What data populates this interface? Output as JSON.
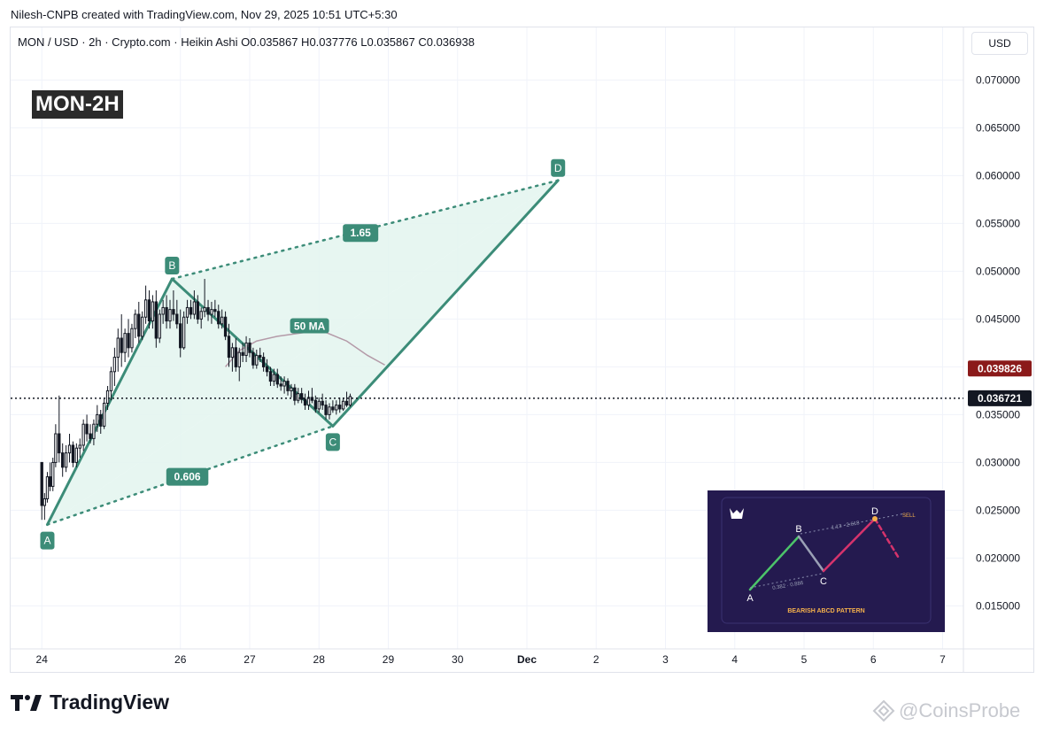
{
  "credit": "Nilesh-CNPB created with TradingView.com, Nov 29, 2025 10:51 UTC+5:30",
  "legend": "MON / USD · 2h · Crypto.com · Heikin Ashi  O0.035867  H0.037776  L0.035867  C0.036938",
  "symbol_badge": "MON-2H",
  "currency_button": "USD",
  "footer": {
    "logo_text": "TradingView",
    "watermark": "@CoinsProbe"
  },
  "colors": {
    "pattern": "#3c8c78",
    "pattern_fill": "#e3f4ef",
    "candle": "#131722",
    "ma": "#b49aa8",
    "price_tag_ma": "#8b1a1a",
    "price_tag_last": "#131722",
    "inset_bg": "#241a4f"
  },
  "icons": {
    "logo": "tradingview-logo-icon",
    "watermark": "coinsprobe-logo-icon"
  },
  "chart_data": {
    "type": "candlestick",
    "title": "",
    "xlabel": "",
    "ylabel": "",
    "ylim": [
      0.0105,
      0.0755
    ],
    "y_ticks": [
      "0.070000",
      "0.065000",
      "0.060000",
      "0.055000",
      "0.050000",
      "0.045000",
      "0.040000",
      "0.035000",
      "0.030000",
      "0.025000",
      "0.020000",
      "0.015000"
    ],
    "x_ticks": [
      {
        "label": "24",
        "t": 0
      },
      {
        "label": "26",
        "t": 2
      },
      {
        "label": "27",
        "t": 3
      },
      {
        "label": "28",
        "t": 4
      },
      {
        "label": "29",
        "t": 5
      },
      {
        "label": "30",
        "t": 6
      },
      {
        "label": "Dec",
        "t": 7,
        "bold": true
      },
      {
        "label": "2",
        "t": 8
      },
      {
        "label": "3",
        "t": 9
      },
      {
        "label": "4",
        "t": 10
      },
      {
        "label": "5",
        "t": 11
      },
      {
        "label": "6",
        "t": 12
      },
      {
        "label": "7",
        "t": 13
      }
    ],
    "xlim": [
      -0.45,
      13.3
    ],
    "last_price": {
      "value": 0.036721,
      "label": "0.036721"
    },
    "ma_price": {
      "value": 0.039826,
      "label": "0.039826"
    },
    "ma": {
      "name": "50 MA",
      "points": [
        [
          2.65,
          0.04
        ],
        [
          2.85,
          0.0417
        ],
        [
          3.1,
          0.0427
        ],
        [
          3.4,
          0.0432
        ],
        [
          3.8,
          0.0436
        ],
        [
          4.1,
          0.0436
        ],
        [
          4.4,
          0.0427
        ],
        [
          4.7,
          0.0412
        ],
        [
          4.95,
          0.0402
        ]
      ]
    },
    "pattern": {
      "points": [
        {
          "name": "A",
          "t": 0.08,
          "price": 0.0235
        },
        {
          "name": "B",
          "t": 1.88,
          "price": 0.0492
        },
        {
          "name": "C",
          "t": 4.2,
          "price": 0.0338
        },
        {
          "name": "D",
          "t": 7.45,
          "price": 0.0595
        }
      ],
      "ratios": [
        {
          "label": "0.606",
          "t": 2.1,
          "price": 0.0285
        },
        {
          "label": "1.65",
          "t": 4.6,
          "price": 0.054
        }
      ]
    },
    "candles": [
      [
        0.0,
        0.03,
        0.03,
        0.024,
        0.0255
      ],
      [
        0.04,
        0.0255,
        0.0268,
        0.024,
        0.0262
      ],
      [
        0.08,
        0.0262,
        0.029,
        0.0258,
        0.0285
      ],
      [
        0.12,
        0.0285,
        0.03,
        0.027,
        0.0275
      ],
      [
        0.16,
        0.0275,
        0.0305,
        0.027,
        0.03
      ],
      [
        0.2,
        0.03,
        0.034,
        0.0295,
        0.033
      ],
      [
        0.25,
        0.033,
        0.037,
        0.03,
        0.031
      ],
      [
        0.3,
        0.031,
        0.032,
        0.0285,
        0.0295
      ],
      [
        0.35,
        0.0295,
        0.0318,
        0.029,
        0.031
      ],
      [
        0.4,
        0.031,
        0.033,
        0.03,
        0.0318
      ],
      [
        0.45,
        0.0318,
        0.0322,
        0.0295,
        0.03
      ],
      [
        0.5,
        0.03,
        0.032,
        0.0295,
        0.0315
      ],
      [
        0.55,
        0.0315,
        0.0325,
        0.0305,
        0.0318
      ],
      [
        0.6,
        0.0318,
        0.0345,
        0.0312,
        0.034
      ],
      [
        0.65,
        0.034,
        0.035,
        0.0322,
        0.033
      ],
      [
        0.7,
        0.033,
        0.034,
        0.032,
        0.0325
      ],
      [
        0.75,
        0.0325,
        0.0345,
        0.0318,
        0.034
      ],
      [
        0.8,
        0.034,
        0.036,
        0.0332,
        0.035
      ],
      [
        0.85,
        0.035,
        0.0355,
        0.033,
        0.0338
      ],
      [
        0.9,
        0.0338,
        0.0368,
        0.0335,
        0.0362
      ],
      [
        0.95,
        0.0362,
        0.038,
        0.0355,
        0.0375
      ],
      [
        1.0,
        0.0375,
        0.04,
        0.0365,
        0.0395
      ],
      [
        1.05,
        0.0395,
        0.042,
        0.038,
        0.041
      ],
      [
        1.1,
        0.041,
        0.044,
        0.0395,
        0.043
      ],
      [
        1.15,
        0.043,
        0.0455,
        0.04,
        0.0415
      ],
      [
        1.2,
        0.0415,
        0.044,
        0.0405,
        0.0435
      ],
      [
        1.25,
        0.0435,
        0.045,
        0.041,
        0.042
      ],
      [
        1.3,
        0.042,
        0.0445,
        0.0415,
        0.044
      ],
      [
        1.35,
        0.044,
        0.046,
        0.043,
        0.0455
      ],
      [
        1.4,
        0.0455,
        0.0468,
        0.0425,
        0.0432
      ],
      [
        1.45,
        0.0432,
        0.0458,
        0.0428,
        0.0452
      ],
      [
        1.5,
        0.0452,
        0.0485,
        0.0445,
        0.047
      ],
      [
        1.55,
        0.047,
        0.048,
        0.044,
        0.0448
      ],
      [
        1.6,
        0.0448,
        0.0475,
        0.044,
        0.0468
      ],
      [
        1.65,
        0.0468,
        0.048,
        0.042,
        0.043
      ],
      [
        1.7,
        0.043,
        0.046,
        0.0425,
        0.0455
      ],
      [
        1.75,
        0.0455,
        0.047,
        0.0445,
        0.0462
      ],
      [
        1.8,
        0.0462,
        0.0475,
        0.044,
        0.0448
      ],
      [
        1.85,
        0.0448,
        0.047,
        0.044,
        0.046
      ],
      [
        1.9,
        0.046,
        0.048,
        0.0448,
        0.0455
      ],
      [
        1.95,
        0.0455,
        0.047,
        0.044,
        0.0445
      ],
      [
        2.0,
        0.0445,
        0.046,
        0.041,
        0.042
      ],
      [
        2.05,
        0.042,
        0.0458,
        0.0418,
        0.0452
      ],
      [
        2.1,
        0.0452,
        0.047,
        0.0445,
        0.0462
      ],
      [
        2.15,
        0.0462,
        0.047,
        0.045,
        0.0455
      ],
      [
        2.2,
        0.0455,
        0.048,
        0.045,
        0.0468
      ],
      [
        2.25,
        0.0468,
        0.0475,
        0.0445,
        0.045
      ],
      [
        2.3,
        0.045,
        0.0462,
        0.044,
        0.0458
      ],
      [
        2.35,
        0.0458,
        0.0492,
        0.0452,
        0.0462
      ],
      [
        2.4,
        0.0462,
        0.047,
        0.0448,
        0.0455
      ],
      [
        2.45,
        0.0455,
        0.0468,
        0.0445,
        0.046
      ],
      [
        2.5,
        0.046,
        0.047,
        0.0452,
        0.0458
      ],
      [
        2.55,
        0.0458,
        0.0465,
        0.044,
        0.0445
      ],
      [
        2.6,
        0.0445,
        0.046,
        0.044,
        0.0452
      ],
      [
        2.65,
        0.0452,
        0.0458,
        0.0428,
        0.0432
      ],
      [
        2.7,
        0.0432,
        0.0445,
        0.04,
        0.041
      ],
      [
        2.75,
        0.041,
        0.0425,
        0.0395,
        0.042
      ],
      [
        2.8,
        0.042,
        0.043,
        0.0395,
        0.04
      ],
      [
        2.85,
        0.04,
        0.042,
        0.0385,
        0.0415
      ],
      [
        2.9,
        0.0415,
        0.0425,
        0.0405,
        0.0412
      ],
      [
        2.95,
        0.0412,
        0.0432,
        0.0405,
        0.0425
      ],
      [
        3.0,
        0.0425,
        0.043,
        0.041,
        0.0415
      ],
      [
        3.05,
        0.0415,
        0.042,
        0.0398,
        0.0402
      ],
      [
        3.1,
        0.0402,
        0.0418,
        0.0398,
        0.0412
      ],
      [
        3.15,
        0.0412,
        0.042,
        0.0405,
        0.041
      ],
      [
        3.2,
        0.041,
        0.0415,
        0.0395,
        0.04
      ],
      [
        3.25,
        0.04,
        0.0408,
        0.039,
        0.0395
      ],
      [
        3.3,
        0.0395,
        0.04,
        0.038,
        0.0385
      ],
      [
        3.35,
        0.0385,
        0.0398,
        0.038,
        0.0392
      ],
      [
        3.4,
        0.0392,
        0.0398,
        0.0378,
        0.0382
      ],
      [
        3.45,
        0.0382,
        0.039,
        0.0375,
        0.038
      ],
      [
        3.5,
        0.038,
        0.039,
        0.0372,
        0.0385
      ],
      [
        3.55,
        0.0385,
        0.0388,
        0.037,
        0.0375
      ],
      [
        3.6,
        0.0375,
        0.0382,
        0.0368,
        0.0378
      ],
      [
        3.65,
        0.0378,
        0.0382,
        0.036,
        0.0365
      ],
      [
        3.7,
        0.0365,
        0.0378,
        0.0362,
        0.0372
      ],
      [
        3.75,
        0.0372,
        0.0378,
        0.0362,
        0.0366
      ],
      [
        3.8,
        0.0366,
        0.0372,
        0.0355,
        0.036
      ],
      [
        3.85,
        0.036,
        0.0375,
        0.0355,
        0.0368
      ],
      [
        3.9,
        0.0368,
        0.0378,
        0.0362,
        0.0365
      ],
      [
        3.95,
        0.0365,
        0.037,
        0.0352,
        0.0356
      ],
      [
        4.0,
        0.0356,
        0.0368,
        0.0352,
        0.0364
      ],
      [
        4.05,
        0.0364,
        0.0372,
        0.0355,
        0.036
      ],
      [
        4.1,
        0.036,
        0.0365,
        0.0345,
        0.035
      ],
      [
        4.15,
        0.035,
        0.0362,
        0.0345,
        0.0358
      ],
      [
        4.2,
        0.0358,
        0.0365,
        0.0352,
        0.0355
      ],
      [
        4.25,
        0.0355,
        0.0365,
        0.035,
        0.036
      ],
      [
        4.3,
        0.036,
        0.0368,
        0.0352,
        0.0356
      ],
      [
        4.35,
        0.0356,
        0.0368,
        0.0354,
        0.0364
      ],
      [
        4.4,
        0.0364,
        0.0374,
        0.0358,
        0.036
      ],
      [
        4.45,
        0.036,
        0.0372,
        0.0358,
        0.0369
      ]
    ],
    "inset": {
      "caption": "BEARISH ABCD PATTERN",
      "point_labels": [
        "A",
        "B",
        "C",
        "D"
      ],
      "ratio_labels": [
        "0.382 · 0.886",
        "1.13 · 2.618"
      ],
      "sell_label": "SELL"
    }
  }
}
